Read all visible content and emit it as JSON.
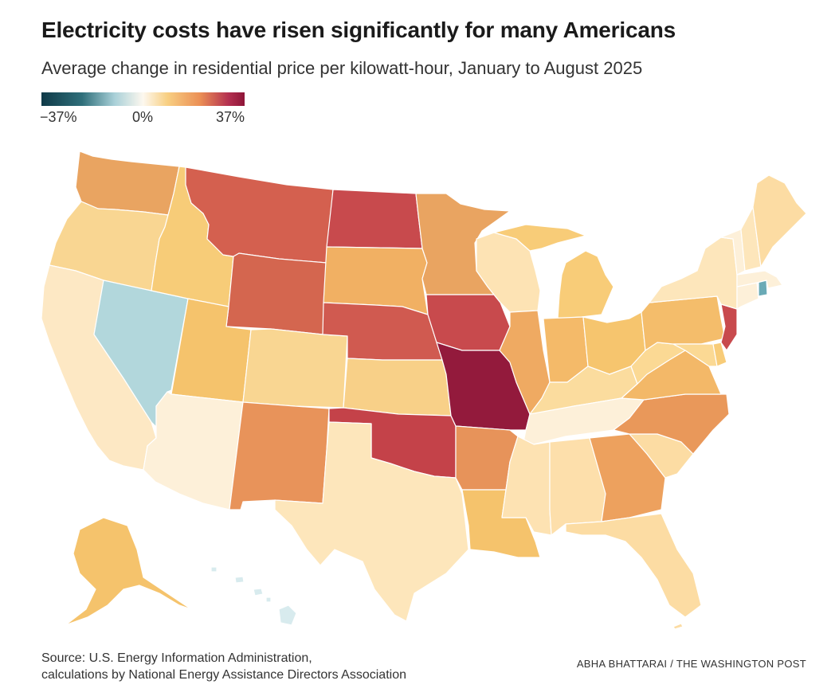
{
  "header": {
    "title": "Electricity costs have risen significantly for many Americans",
    "subtitle": "Average change in residential price per kilowatt-hour, January to August 2025"
  },
  "legend": {
    "min_label": "−37%",
    "mid_label": "0%",
    "max_label": "37%",
    "min_value": -37,
    "max_value": 37
  },
  "colors": {
    "very_high": "#931a3c",
    "high": "#c84a4d",
    "med_high": "#d4604f",
    "medium": "#e9965a",
    "med_low": "#f3b765",
    "low": "#f8d38a",
    "very_low": "#fde6bb",
    "near_zero": "#fdf0d9",
    "negative": "#b2d7dc",
    "negative_light": "#d8ebee",
    "negative_strong": "#6aaab6"
  },
  "map": {
    "states": [
      {
        "name": "Washington",
        "color": "#e9a461"
      },
      {
        "name": "Oregon",
        "color": "#f9d692"
      },
      {
        "name": "California",
        "color": "#fde8c4"
      },
      {
        "name": "Nevada",
        "color": "#b2d7dc"
      },
      {
        "name": "Idaho",
        "color": "#f7cc78"
      },
      {
        "name": "Montana",
        "color": "#d4604f"
      },
      {
        "name": "Wyoming",
        "color": "#d4664f"
      },
      {
        "name": "Utah",
        "color": "#f5c36c"
      },
      {
        "name": "Arizona",
        "color": "#fdf0d9"
      },
      {
        "name": "Colorado",
        "color": "#f9d692"
      },
      {
        "name": "New Mexico",
        "color": "#e8935a"
      },
      {
        "name": "North Dakota",
        "color": "#c84a4d"
      },
      {
        "name": "South Dakota",
        "color": "#f1b063"
      },
      {
        "name": "Nebraska",
        "color": "#d05a50"
      },
      {
        "name": "Kansas",
        "color": "#f8d088"
      },
      {
        "name": "Oklahoma",
        "color": "#c44249"
      },
      {
        "name": "Texas",
        "color": "#fde6bb"
      },
      {
        "name": "Minnesota",
        "color": "#e9a461"
      },
      {
        "name": "Iowa",
        "color": "#c84a4d"
      },
      {
        "name": "Missouri",
        "color": "#931a3c"
      },
      {
        "name": "Arkansas",
        "color": "#e7935a"
      },
      {
        "name": "Louisiana",
        "color": "#f5c36c"
      },
      {
        "name": "Wisconsin",
        "color": "#fde3b4"
      },
      {
        "name": "Illinois",
        "color": "#efaa62"
      },
      {
        "name": "Michigan",
        "color": "#f8cc78"
      },
      {
        "name": "Indiana",
        "color": "#f4ba69"
      },
      {
        "name": "Ohio",
        "color": "#f6c56e"
      },
      {
        "name": "Kentucky",
        "color": "#fbdc9e"
      },
      {
        "name": "Tennessee",
        "color": "#fdf0d9"
      },
      {
        "name": "Mississippi",
        "color": "#fde2b2"
      },
      {
        "name": "Alabama",
        "color": "#fddfab"
      },
      {
        "name": "Georgia",
        "color": "#eda15e"
      },
      {
        "name": "Florida",
        "color": "#fcdca3"
      },
      {
        "name": "South Carolina",
        "color": "#fcdca3"
      },
      {
        "name": "North Carolina",
        "color": "#e9985a"
      },
      {
        "name": "Virginia",
        "color": "#f3b868"
      },
      {
        "name": "West Virginia",
        "color": "#fbd994"
      },
      {
        "name": "Pennsylvania",
        "color": "#f4bd6b"
      },
      {
        "name": "New York",
        "color": "#fde6bb"
      },
      {
        "name": "New Jersey",
        "color": "#c84a4d"
      },
      {
        "name": "Delaware",
        "color": "#f8cc78"
      },
      {
        "name": "Maryland",
        "color": "#fbd994"
      },
      {
        "name": "Connecticut",
        "color": "#fdf0d9"
      },
      {
        "name": "Rhode Island",
        "color": "#6aaab6"
      },
      {
        "name": "Massachusetts",
        "color": "#fdf0d9"
      },
      {
        "name": "Vermont",
        "color": "#fdf0d9"
      },
      {
        "name": "New Hampshire",
        "color": "#fde6bb"
      },
      {
        "name": "Maine",
        "color": "#fcdca3"
      },
      {
        "name": "Alaska",
        "color": "#f5c36c"
      },
      {
        "name": "Hawaii",
        "color": "#d8ebee"
      }
    ]
  },
  "footer": {
    "source_line1": "Source: U.S. Energy Information Administration,",
    "source_line2": "calculations by National Energy Assistance Directors Association",
    "credit": "ABHA BHATTARAI / THE WASHINGTON POST"
  }
}
